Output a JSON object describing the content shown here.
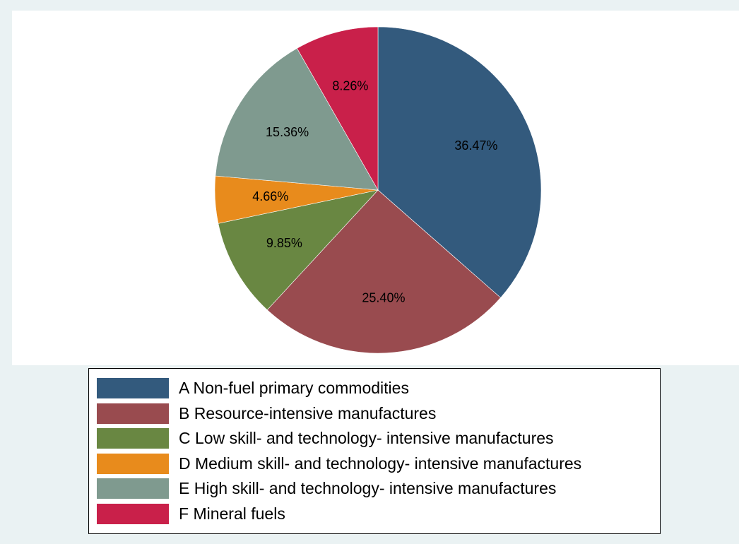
{
  "chart_data": {
    "type": "pie",
    "title": "",
    "legend_position": "bottom",
    "slices": [
      {
        "label": "A Non-fuel primary commodities",
        "value": 36.47,
        "value_label": "36.47%",
        "color": "#335a7d"
      },
      {
        "label": "B Resource-intensive manufactures",
        "value": 25.4,
        "value_label": "25.40%",
        "color": "#994b4f"
      },
      {
        "label": "C Low skill- and technology- intensive manufactures",
        "value": 9.85,
        "value_label": "9.85%",
        "color": "#698742"
      },
      {
        "label": "D Medium skill- and technology- intensive manufactures",
        "value": 4.66,
        "value_label": "4.66%",
        "color": "#e88b1c"
      },
      {
        "label": "E High skill- and technology- intensive manufactures",
        "value": 15.36,
        "value_label": "15.36%",
        "color": "#7f9a8f"
      },
      {
        "label": "F Mineral fuels",
        "value": 8.26,
        "value_label": "8.26%",
        "color": "#c9204a"
      }
    ]
  }
}
